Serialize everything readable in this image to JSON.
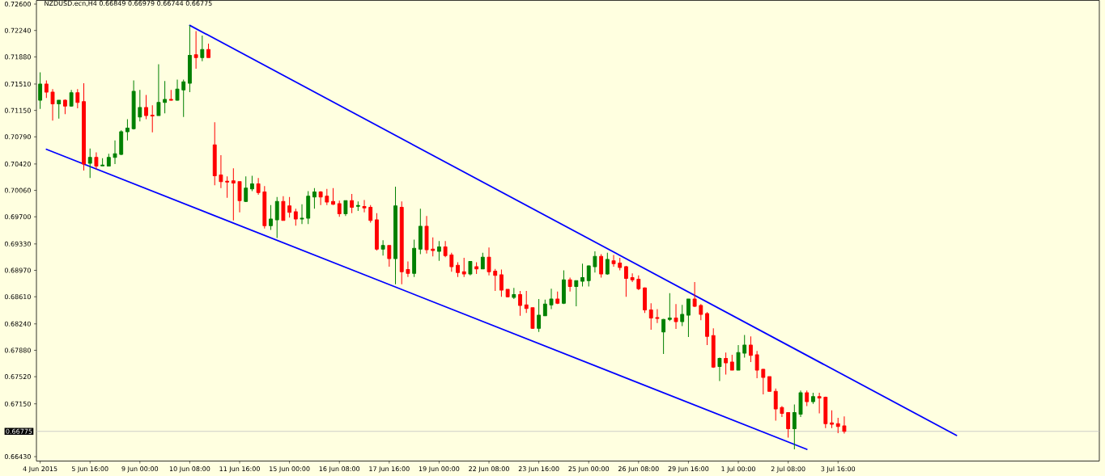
{
  "chart_data": {
    "type": "candlestick",
    "title": "NZDUSD.ecn,H4  0.66849 0.66979 0.66744 0.66775",
    "categories": [
      "4 Jun 2015",
      null,
      null,
      null,
      null,
      null,
      null,
      null,
      "5 Jun 16:00",
      null,
      null,
      null,
      null,
      null,
      null,
      null,
      "9 Jun 00:00",
      null,
      null,
      null,
      null,
      null,
      null,
      null,
      "10 Jun 08:00",
      null,
      null,
      null,
      null,
      null,
      null,
      null,
      "11 Jun 16:00",
      null,
      null,
      null,
      null,
      null,
      null,
      null,
      "15 Jun 00:00",
      null,
      null,
      null,
      null,
      null,
      null,
      null,
      "16 Jun 08:00",
      null,
      null,
      null,
      null,
      null,
      null,
      null,
      "17 Jun 16:00",
      null,
      null,
      null,
      null,
      null,
      null,
      null,
      "19 Jun 00:00",
      null,
      null,
      null,
      null,
      null,
      null,
      null,
      "22 Jun 08:00",
      null,
      null,
      null,
      null,
      null,
      null,
      null,
      "23 Jun 16:00",
      null,
      null,
      null,
      null,
      null,
      null,
      null,
      "25 Jun 00:00",
      null,
      null,
      null,
      null,
      null,
      null,
      null,
      "26 Jun 08:00",
      null,
      null,
      null,
      null,
      null,
      null,
      null,
      "29 Jun 16:00",
      null,
      null,
      null,
      null,
      null,
      null,
      null,
      "1 Jul 00:00",
      null,
      null,
      null,
      null,
      null,
      null,
      null,
      "2 Jul 08:00",
      null,
      null,
      null,
      null,
      null,
      null,
      null,
      "3 Jul 16:00",
      null,
      null,
      null,
      null,
      null,
      null,
      null,
      null,
      null,
      null,
      null,
      null,
      null,
      null,
      null,
      null,
      null,
      null,
      null
    ],
    "ohlc": [
      [
        0.7129,
        0.7167,
        0.7117,
        0.7151
      ],
      [
        0.7151,
        0.7156,
        0.7132,
        0.714
      ],
      [
        0.714,
        0.7144,
        0.7101,
        0.7124
      ],
      [
        0.7124,
        0.7129,
        0.7104,
        0.7129
      ],
      [
        0.7129,
        0.713,
        0.711,
        0.7121
      ],
      [
        0.7121,
        0.7143,
        0.712,
        0.7139
      ],
      [
        0.7139,
        0.7144,
        0.7118,
        0.7126
      ],
      [
        0.7127,
        0.7152,
        0.7033,
        0.7042
      ],
      [
        0.7043,
        0.7063,
        0.7023,
        0.7051
      ],
      [
        0.7051,
        0.7058,
        0.7035,
        0.7039
      ],
      [
        0.704,
        0.705,
        0.7039,
        0.704
      ],
      [
        0.7039,
        0.7056,
        0.7039,
        0.7051
      ],
      [
        0.7051,
        0.7074,
        0.7042,
        0.7056
      ],
      [
        0.7055,
        0.7088,
        0.7054,
        0.7086
      ],
      [
        0.7086,
        0.7103,
        0.7074,
        0.7091
      ],
      [
        0.709,
        0.7156,
        0.7089,
        0.7141
      ],
      [
        0.7106,
        0.7143,
        0.71,
        0.7119
      ],
      [
        0.7119,
        0.7136,
        0.7103,
        0.7108
      ],
      [
        0.7108,
        0.7122,
        0.7085,
        0.7108
      ],
      [
        0.7108,
        0.7178,
        0.7108,
        0.7126
      ],
      [
        0.7126,
        0.7155,
        0.7111,
        0.713
      ],
      [
        0.713,
        0.7143,
        0.7128,
        0.7129
      ],
      [
        0.7129,
        0.7157,
        0.7128,
        0.7144
      ],
      [
        0.7143,
        0.7157,
        0.7106,
        0.7154
      ],
      [
        0.7152,
        0.7231,
        0.714,
        0.719
      ],
      [
        0.7191,
        0.7223,
        0.7172,
        0.7187
      ],
      [
        0.7187,
        0.7217,
        0.7182,
        0.7198
      ],
      [
        0.7198,
        0.7206,
        0.7187,
        0.7187
      ],
      [
        0.7068,
        0.7099,
        0.7013,
        0.7026
      ],
      [
        0.7027,
        0.7054,
        0.7009,
        0.7018
      ],
      [
        0.7018,
        0.7025,
        0.6996,
        0.7018
      ],
      [
        0.7019,
        0.7036,
        0.6965,
        0.7016
      ],
      [
        0.7018,
        0.7018,
        0.6976,
        0.6992
      ],
      [
        0.6991,
        0.7025,
        0.699,
        0.7009
      ],
      [
        0.7008,
        0.7026,
        0.7005,
        0.7015
      ],
      [
        0.7015,
        0.7023,
        0.7,
        0.7003
      ],
      [
        0.7004,
        0.7012,
        0.6954,
        0.6958
      ],
      [
        0.6958,
        0.6986,
        0.6952,
        0.6967
      ],
      [
        0.6966,
        0.6997,
        0.6941,
        0.6991
      ],
      [
        0.6991,
        0.6998,
        0.6965,
        0.6965
      ],
      [
        0.6985,
        0.6997,
        0.6969,
        0.6976
      ],
      [
        0.6977,
        0.6981,
        0.6958,
        0.6967
      ],
      [
        0.6967,
        0.6987,
        0.696,
        0.6968
      ],
      [
        0.6968,
        0.7005,
        0.696,
        0.6998
      ],
      [
        0.6997,
        0.7009,
        0.6981,
        0.7004
      ],
      [
        0.7004,
        0.7005,
        0.6986,
        0.6997
      ],
      [
        0.6998,
        0.7008,
        0.6986,
        0.699
      ],
      [
        0.6991,
        0.7009,
        0.6986,
        0.6987
      ],
      [
        0.6988,
        0.6992,
        0.697,
        0.6974
      ],
      [
        0.6974,
        0.6992,
        0.6971,
        0.6992
      ],
      [
        0.6992,
        0.7001,
        0.6975,
        0.6983
      ],
      [
        0.6985,
        0.6991,
        0.6978,
        0.6985
      ],
      [
        0.6984,
        0.6993,
        0.6976,
        0.6982
      ],
      [
        0.6983,
        0.6986,
        0.6962,
        0.6965
      ],
      [
        0.6966,
        0.6975,
        0.6924,
        0.6926
      ],
      [
        0.6926,
        0.6938,
        0.6917,
        0.6931
      ],
      [
        0.6931,
        0.6931,
        0.6902,
        0.6913
      ],
      [
        0.6913,
        0.7011,
        0.6878,
        0.6985
      ],
      [
        0.6983,
        0.6991,
        0.6878,
        0.6895
      ],
      [
        0.6898,
        0.6909,
        0.6888,
        0.6893
      ],
      [
        0.6893,
        0.6939,
        0.6888,
        0.6927
      ],
      [
        0.6926,
        0.6981,
        0.6919,
        0.6957
      ],
      [
        0.6957,
        0.6971,
        0.692,
        0.6925
      ],
      [
        0.6926,
        0.6942,
        0.6916,
        0.6924
      ],
      [
        0.6923,
        0.6937,
        0.691,
        0.6929
      ],
      [
        0.6929,
        0.6937,
        0.6915,
        0.6917
      ],
      [
        0.6918,
        0.6921,
        0.6895,
        0.6902
      ],
      [
        0.6904,
        0.6908,
        0.6888,
        0.6894
      ],
      [
        0.6895,
        0.6914,
        0.6888,
        0.6892
      ],
      [
        0.6892,
        0.6909,
        0.689,
        0.6909
      ],
      [
        0.6902,
        0.6908,
        0.6892,
        0.6899
      ],
      [
        0.6899,
        0.6921,
        0.6899,
        0.6915
      ],
      [
        0.6915,
        0.6928,
        0.689,
        0.6895
      ],
      [
        0.6896,
        0.6899,
        0.6869,
        0.689
      ],
      [
        0.6891,
        0.6898,
        0.6861,
        0.687
      ],
      [
        0.6871,
        0.6871,
        0.686,
        0.6861
      ],
      [
        0.686,
        0.6873,
        0.6858,
        0.6864
      ],
      [
        0.6864,
        0.6869,
        0.6835,
        0.6849
      ],
      [
        0.685,
        0.6869,
        0.6839,
        0.6845
      ],
      [
        0.6846,
        0.6846,
        0.6817,
        0.6818
      ],
      [
        0.6818,
        0.6858,
        0.6813,
        0.6836
      ],
      [
        0.6835,
        0.6857,
        0.6835,
        0.6851
      ],
      [
        0.685,
        0.6872,
        0.6844,
        0.6858
      ],
      [
        0.6858,
        0.6868,
        0.6851,
        0.6852
      ],
      [
        0.6852,
        0.6897,
        0.6851,
        0.6884
      ],
      [
        0.6884,
        0.6887,
        0.6868,
        0.6875
      ],
      [
        0.6875,
        0.6883,
        0.6848,
        0.6883
      ],
      [
        0.6882,
        0.6906,
        0.6875,
        0.6887
      ],
      [
        0.6883,
        0.6904,
        0.6875,
        0.6903
      ],
      [
        0.6902,
        0.6923,
        0.6894,
        0.6916
      ],
      [
        0.6916,
        0.6919,
        0.6887,
        0.6892
      ],
      [
        0.6892,
        0.6921,
        0.6891,
        0.6912
      ],
      [
        0.691,
        0.6918,
        0.6902,
        0.6906
      ],
      [
        0.6907,
        0.6914,
        0.6897,
        0.6901
      ],
      [
        0.6902,
        0.6903,
        0.6861,
        0.6886
      ],
      [
        0.6887,
        0.6893,
        0.6881,
        0.6884
      ],
      [
        0.6885,
        0.689,
        0.687,
        0.6872
      ],
      [
        0.6873,
        0.6874,
        0.6839,
        0.6843
      ],
      [
        0.6843,
        0.6852,
        0.6816,
        0.6832
      ],
      [
        0.6832,
        0.6844,
        0.6825,
        0.6832
      ],
      [
        0.6813,
        0.6831,
        0.6783,
        0.683
      ],
      [
        0.683,
        0.6866,
        0.6828,
        0.6832
      ],
      [
        0.6832,
        0.6851,
        0.6817,
        0.6827
      ],
      [
        0.6827,
        0.685,
        0.6821,
        0.6837
      ],
      [
        0.6836,
        0.6858,
        0.6806,
        0.6858
      ],
      [
        0.6858,
        0.6881,
        0.6847,
        0.6848
      ],
      [
        0.6849,
        0.6851,
        0.6829,
        0.6837
      ],
      [
        0.6838,
        0.684,
        0.6795,
        0.6807
      ],
      [
        0.6808,
        0.6818,
        0.6764,
        0.6765
      ],
      [
        0.6766,
        0.6778,
        0.6746,
        0.6777
      ],
      [
        0.6777,
        0.6785,
        0.6755,
        0.6771
      ],
      [
        0.6772,
        0.6782,
        0.6761,
        0.6761
      ],
      [
        0.6761,
        0.6795,
        0.6761,
        0.6785
      ],
      [
        0.6784,
        0.6809,
        0.6778,
        0.6795
      ],
      [
        0.6795,
        0.6807,
        0.6772,
        0.6781
      ],
      [
        0.6782,
        0.6787,
        0.675,
        0.6761
      ],
      [
        0.6762,
        0.6763,
        0.6728,
        0.6751
      ],
      [
        0.6752,
        0.6752,
        0.6732,
        0.6732
      ],
      [
        0.6732,
        0.6736,
        0.6692,
        0.6708
      ],
      [
        0.671,
        0.6712,
        0.6697,
        0.6702
      ],
      [
        0.6703,
        0.6703,
        0.6669,
        0.6681
      ],
      [
        0.6681,
        0.6714,
        0.6653,
        0.6703
      ],
      [
        0.6701,
        0.6733,
        0.6697,
        0.673
      ],
      [
        0.673,
        0.6733,
        0.6712,
        0.6718
      ],
      [
        0.6718,
        0.673,
        0.6715,
        0.6725
      ],
      [
        0.6725,
        0.673,
        0.6702,
        0.6723
      ],
      [
        0.6724,
        0.6725,
        0.6682,
        0.6688
      ],
      [
        0.6689,
        0.6706,
        0.6682,
        0.6687
      ],
      [
        0.6688,
        0.6696,
        0.6675,
        0.6684
      ],
      [
        0.66849,
        0.66979,
        0.66744,
        0.66775
      ],
      null,
      null,
      null,
      null,
      null,
      null,
      null,
      null,
      null,
      null,
      null,
      null,
      null,
      null,
      null,
      null,
      null,
      null
    ],
    "colors": [
      "#008000",
      "#ff0000",
      "#ff0000",
      "#008000",
      "#ff0000",
      "#008000",
      "#ff0000",
      "#ff0000",
      "#008000",
      "#ff0000",
      "#008000",
      "#008000",
      "#008000",
      "#008000",
      "#008000",
      "#008000",
      "#008000",
      "#ff0000",
      "#ff0000",
      "#008000",
      "#008000",
      "#ff0000",
      "#008000",
      "#008000",
      "#008000",
      "#ff0000",
      "#008000",
      "#ff0000",
      "#ff0000",
      "#ff0000",
      "#ff0000",
      "#ff0000",
      "#ff0000",
      "#008000",
      "#008000",
      "#ff0000",
      "#ff0000",
      "#008000",
      "#008000",
      "#ff0000",
      "#ff0000",
      "#ff0000",
      "#008000",
      "#008000",
      "#008000",
      "#ff0000",
      "#ff0000",
      "#ff0000",
      "#ff0000",
      "#008000",
      "#ff0000",
      "#008000",
      "#ff0000",
      "#ff0000",
      "#ff0000",
      "#008000",
      "#ff0000",
      "#008000",
      "#ff0000",
      "#ff0000",
      "#008000",
      "#008000",
      "#ff0000",
      "#ff0000",
      "#008000",
      "#ff0000",
      "#ff0000",
      "#ff0000",
      "#ff0000",
      "#008000",
      "#ff0000",
      "#008000",
      "#ff0000",
      "#ff0000",
      "#ff0000",
      "#ff0000",
      "#008000",
      "#ff0000",
      "#ff0000",
      "#ff0000",
      "#008000",
      "#008000",
      "#008000",
      "#ff0000",
      "#008000",
      "#ff0000",
      "#008000",
      "#008000",
      "#008000",
      "#008000",
      "#ff0000",
      "#008000",
      "#ff0000",
      "#ff0000",
      "#ff0000",
      "#ff0000",
      "#ff0000",
      "#ff0000",
      "#ff0000",
      "#ff0000",
      "#008000",
      "#008000",
      "#ff0000",
      "#008000",
      "#008000",
      "#ff0000",
      "#ff0000",
      "#ff0000",
      "#ff0000",
      "#008000",
      "#ff0000",
      "#ff0000",
      "#008000",
      "#008000",
      "#ff0000",
      "#ff0000",
      "#ff0000",
      "#ff0000",
      "#ff0000",
      "#ff0000",
      "#ff0000",
      "#008000",
      "#008000",
      "#ff0000",
      "#008000",
      "#ff0000",
      "#ff0000",
      "#ff0000",
      "#ff0000",
      "#ff0000",
      null,
      null,
      null,
      null,
      null,
      null,
      null,
      null,
      null,
      null,
      null,
      null,
      null,
      null,
      null,
      null,
      null,
      null
    ],
    "series": [
      {
        "type": "line",
        "color": "#0000ff",
        "values": [
          null,
          null,
          null,
          null,
          null,
          null,
          null,
          null,
          null,
          null,
          null,
          null,
          null,
          null,
          null,
          null,
          null,
          null,
          null,
          null,
          null,
          null,
          null,
          null,
          0.7231,
          null,
          null,
          null,
          null,
          null,
          null,
          null,
          null,
          null,
          null,
          null,
          null,
          null,
          null,
          null,
          null,
          null,
          null,
          null,
          null,
          null,
          null,
          null,
          null,
          null,
          null,
          null,
          null,
          null,
          null,
          null,
          null,
          null,
          null,
          null,
          null,
          null,
          null,
          null,
          null,
          null,
          null,
          null,
          null,
          null,
          null,
          null,
          null,
          null,
          null,
          null,
          null,
          null,
          null,
          null,
          null,
          null,
          null,
          null,
          null,
          null,
          null,
          null,
          null,
          null,
          null,
          null,
          null,
          null,
          null,
          null,
          null,
          null,
          null,
          null,
          null,
          null,
          null,
          null,
          null,
          null,
          null,
          null,
          null,
          null,
          null,
          null,
          null,
          null,
          null,
          null,
          null,
          null,
          null,
          null,
          null,
          null,
          null,
          null,
          null,
          null,
          null,
          null,
          null,
          null,
          null,
          null,
          null,
          null,
          null,
          null,
          null,
          null,
          null,
          null,
          null,
          null,
          null,
          null,
          null,
          null,
          null,
          0.6672
        ]
      },
      {
        "type": "line",
        "color": "#0000ff",
        "values": [
          null,
          0.7062,
          null,
          null,
          null,
          null,
          null,
          null,
          null,
          null,
          null,
          null,
          null,
          null,
          null,
          null,
          null,
          null,
          null,
          null,
          null,
          null,
          null,
          null,
          null,
          null,
          null,
          null,
          null,
          null,
          null,
          null,
          null,
          null,
          null,
          null,
          null,
          null,
          null,
          null,
          null,
          null,
          null,
          null,
          null,
          null,
          null,
          null,
          null,
          null,
          null,
          null,
          null,
          null,
          null,
          null,
          null,
          null,
          null,
          null,
          null,
          null,
          null,
          null,
          null,
          null,
          null,
          null,
          null,
          null,
          null,
          null,
          null,
          null,
          null,
          null,
          null,
          null,
          null,
          null,
          null,
          null,
          null,
          null,
          null,
          null,
          null,
          null,
          null,
          null,
          null,
          null,
          null,
          null,
          null,
          null,
          null,
          null,
          null,
          null,
          null,
          null,
          null,
          null,
          null,
          null,
          null,
          null,
          null,
          null,
          null,
          null,
          null,
          null,
          null,
          null,
          null,
          null,
          null,
          null,
          null,
          null,
          null,
          0.6653,
          null,
          null,
          null,
          null,
          null,
          null,
          null,
          null,
          null,
          null,
          null,
          null,
          null,
          null,
          null,
          null,
          null,
          null,
          null,
          null,
          null,
          null,
          null,
          null
        ]
      }
    ],
    "ref_lines": [
      {
        "axis": "y",
        "value": 0.66775,
        "label": "0.66775",
        "color": "#c0c0c0"
      }
    ],
    "ylim": [
      0.6637,
      0.7265
    ],
    "yticks": [
      {
        "value": 0.6643,
        "label": "0.66430"
      },
      {
        "value": 0.6715,
        "label": "0.67150"
      },
      {
        "value": 0.6752,
        "label": "0.67520"
      },
      {
        "value": 0.6788,
        "label": "0.67880"
      },
      {
        "value": 0.6824,
        "label": "0.68240"
      },
      {
        "value": 0.6861,
        "label": "0.68610"
      },
      {
        "value": 0.6897,
        "label": "0.68970"
      },
      {
        "value": 0.6933,
        "label": "0.69330"
      },
      {
        "value": 0.697,
        "label": "0.69700"
      },
      {
        "value": 0.7006,
        "label": "0.70060"
      },
      {
        "value": 0.7042,
        "label": "0.70420"
      },
      {
        "value": 0.7079,
        "label": "0.70790"
      },
      {
        "value": 0.7115,
        "label": "0.71150"
      },
      {
        "value": 0.7151,
        "label": "0.71510"
      },
      {
        "value": 0.7188,
        "label": "0.71880"
      },
      {
        "value": 0.7224,
        "label": "0.72240"
      },
      {
        "value": 0.726,
        "label": "0.72600"
      }
    ]
  }
}
